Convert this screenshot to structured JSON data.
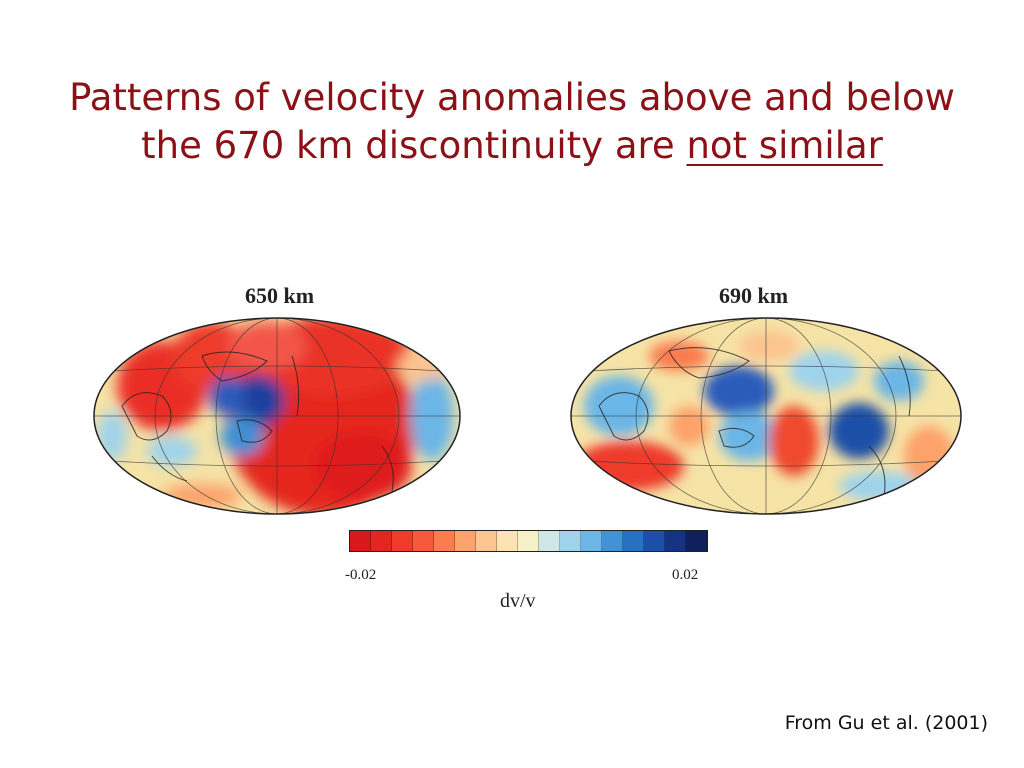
{
  "title": {
    "line1": "Patterns of velocity anomalies above and below",
    "line2_prefix": "the 670 km discontinuity are ",
    "line2_emphasis": "not similar"
  },
  "maps": [
    {
      "label": "650 km"
    },
    {
      "label": "690 km"
    }
  ],
  "colorbar": {
    "min_label": "-0.02",
    "max_label": "0.02",
    "axis_label": "dv/v",
    "colors": [
      "#d7191c",
      "#e3261f",
      "#ee3b2a",
      "#f55a3a",
      "#fa7c4f",
      "#fca26a",
      "#fcc48f",
      "#fde3b3",
      "#f4f0c7",
      "#cfe8e7",
      "#9fd3ec",
      "#6bb6e6",
      "#3f93d6",
      "#2771c2",
      "#1b4fa8",
      "#163383",
      "#10205c"
    ]
  },
  "citation": "From Gu et al. (2001)"
}
